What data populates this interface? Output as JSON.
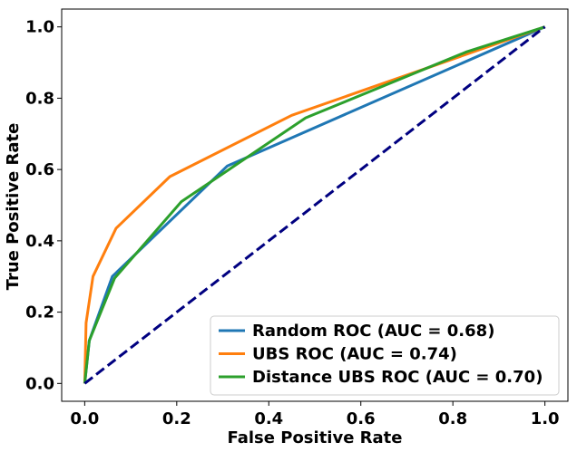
{
  "chart_data": {
    "type": "line",
    "title": "",
    "xlabel": "False Positive Rate",
    "ylabel": "True Positive Rate",
    "xlim": [
      -0.05,
      1.05
    ],
    "ylim": [
      -0.05,
      1.05
    ],
    "xticks": [
      "0.0",
      "0.2",
      "0.4",
      "0.6",
      "0.8",
      "1.0"
    ],
    "yticks": [
      "0.0",
      "0.2",
      "0.4",
      "0.6",
      "0.8",
      "1.0"
    ],
    "grid": false,
    "legend_position": "lower-right",
    "series": [
      {
        "name": "Random ROC (AUC = 0.68)",
        "color": "#1f77b4",
        "points": [
          [
            0.0,
            0.0
          ],
          [
            0.01,
            0.12
          ],
          [
            0.06,
            0.3
          ],
          [
            0.31,
            0.61
          ],
          [
            1.0,
            1.0
          ]
        ]
      },
      {
        "name": "UBS ROC (AUC = 0.74)",
        "color": "#ff7f0e",
        "points": [
          [
            0.0,
            0.0
          ],
          [
            0.003,
            0.17
          ],
          [
            0.018,
            0.3
          ],
          [
            0.068,
            0.435
          ],
          [
            0.185,
            0.58
          ],
          [
            0.45,
            0.752
          ],
          [
            1.0,
            1.0
          ]
        ]
      },
      {
        "name": "Distance UBS ROC (AUC = 0.70)",
        "color": "#2ca02c",
        "points": [
          [
            0.0,
            0.0
          ],
          [
            0.01,
            0.12
          ],
          [
            0.065,
            0.295
          ],
          [
            0.21,
            0.51
          ],
          [
            0.48,
            0.745
          ],
          [
            0.83,
            0.93
          ],
          [
            1.0,
            1.0
          ]
        ]
      }
    ],
    "reference_line": {
      "color": "#000080",
      "style": "dashed",
      "points": [
        [
          0.0,
          0.0
        ],
        [
          1.0,
          1.0
        ]
      ]
    }
  }
}
